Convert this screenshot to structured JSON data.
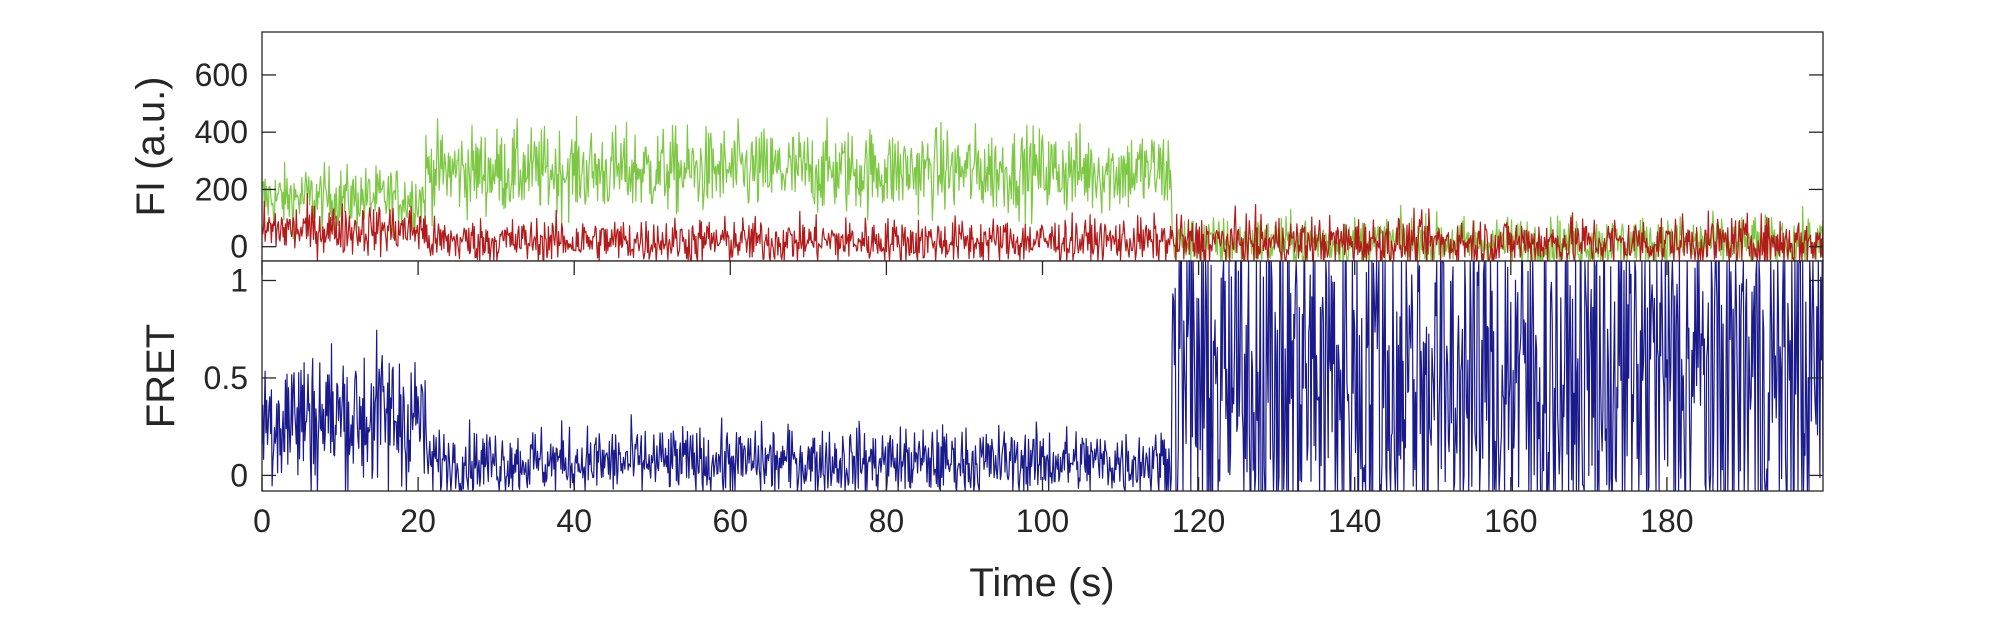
{
  "chart_data": [
    {
      "type": "line",
      "ylabel": "FI (a.u.)",
      "xlabel": "",
      "xlim": [
        0,
        200
      ],
      "ylim": [
        -50,
        750
      ],
      "yticks": [
        0,
        200,
        400,
        600
      ],
      "yticklabels": [
        "0",
        "200",
        "400",
        "600"
      ],
      "grid": false,
      "series": [
        {
          "color": "#7dc843",
          "segments": [
            {
              "x_start": 0,
              "x_end": 21,
              "mean": 170,
              "noise": 55
            },
            {
              "x_start": 21,
              "x_end": 116.5,
              "mean": 265,
              "noise": 75
            },
            {
              "x_start": 116.5,
              "x_end": 200,
              "mean": 15,
              "noise": 45
            }
          ]
        },
        {
          "color": "#b31a1a",
          "segments": [
            {
              "x_start": 0,
              "x_end": 21,
              "mean": 60,
              "noise": 45
            },
            {
              "x_start": 21,
              "x_end": 116.5,
              "mean": 20,
              "noise": 40
            },
            {
              "x_start": 116.5,
              "x_end": 200,
              "mean": 15,
              "noise": 45
            }
          ]
        }
      ]
    },
    {
      "type": "line",
      "xlabel": "Time (s)",
      "ylabel": "FRET",
      "xlim": [
        0,
        200
      ],
      "ylim": [
        -0.08,
        1.1
      ],
      "xticks": [
        0,
        20,
        40,
        60,
        80,
        100,
        120,
        140,
        160,
        180
      ],
      "xticklabels": [
        "0",
        "20",
        "40",
        "60",
        "80",
        "100",
        "120",
        "140",
        "160",
        "180"
      ],
      "yticks": [
        0,
        0.5,
        1
      ],
      "yticklabels": [
        "0",
        "0.5",
        "1"
      ],
      "grid": false,
      "series": [
        {
          "color": "#1a1a8c",
          "segments": [
            {
              "x_start": 0,
              "x_end": 21,
              "mean": 0.3,
              "noise": 0.2
            },
            {
              "x_start": 21,
              "x_end": 116.5,
              "mean": 0.07,
              "noise": 0.09
            },
            {
              "x_start": 116.5,
              "x_end": 200,
              "mean": 0.5,
              "noise": 0.6
            }
          ]
        }
      ]
    }
  ]
}
